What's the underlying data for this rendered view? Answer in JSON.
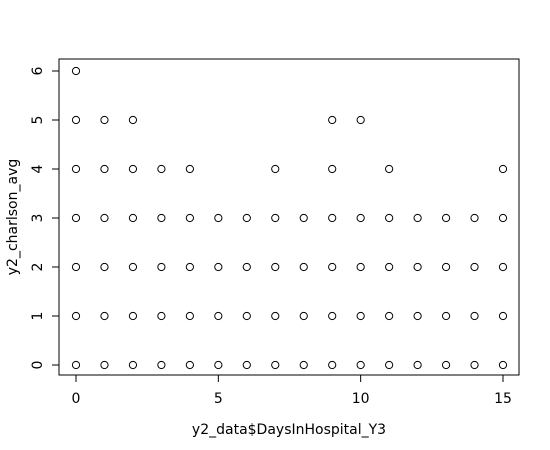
{
  "chart_data": {
    "type": "scatter",
    "title": "",
    "xlabel": "y2_data$DaysInHospital_Y3",
    "ylabel": "y2_charlson_avg",
    "xlim": [
      0,
      15
    ],
    "ylim": [
      0,
      6
    ],
    "x_ticks": [
      0,
      5,
      10,
      15
    ],
    "y_ticks": [
      0,
      1,
      2,
      3,
      4,
      5,
      6
    ],
    "marker": "open-circle",
    "grid": false,
    "points": [
      {
        "x": 0,
        "y": 6,
        "bold": true
      },
      {
        "x": 0,
        "y": 5,
        "bold": true
      },
      {
        "x": 1,
        "y": 5,
        "bold": false
      },
      {
        "x": 2,
        "y": 5,
        "bold": false
      },
      {
        "x": 9,
        "y": 5,
        "bold": false
      },
      {
        "x": 10,
        "y": 5,
        "bold": false
      },
      {
        "x": 0,
        "y": 4,
        "bold": true
      },
      {
        "x": 1,
        "y": 4,
        "bold": true
      },
      {
        "x": 2,
        "y": 4,
        "bold": true
      },
      {
        "x": 3,
        "y": 4,
        "bold": true
      },
      {
        "x": 4,
        "y": 4,
        "bold": false
      },
      {
        "x": 7,
        "y": 4,
        "bold": false
      },
      {
        "x": 9,
        "y": 4,
        "bold": false
      },
      {
        "x": 11,
        "y": 4,
        "bold": false
      },
      {
        "x": 15,
        "y": 4,
        "bold": false
      },
      {
        "x": 0,
        "y": 3,
        "bold": true
      },
      {
        "x": 1,
        "y": 3,
        "bold": true
      },
      {
        "x": 2,
        "y": 3,
        "bold": true
      },
      {
        "x": 3,
        "y": 3,
        "bold": true
      },
      {
        "x": 4,
        "y": 3,
        "bold": true
      },
      {
        "x": 5,
        "y": 3,
        "bold": true
      },
      {
        "x": 6,
        "y": 3,
        "bold": true
      },
      {
        "x": 7,
        "y": 3,
        "bold": true
      },
      {
        "x": 8,
        "y": 3,
        "bold": true
      },
      {
        "x": 9,
        "y": 3,
        "bold": true
      },
      {
        "x": 10,
        "y": 3,
        "bold": true
      },
      {
        "x": 11,
        "y": 3,
        "bold": false
      },
      {
        "x": 12,
        "y": 3,
        "bold": false
      },
      {
        "x": 13,
        "y": 3,
        "bold": false
      },
      {
        "x": 14,
        "y": 3,
        "bold": false
      },
      {
        "x": 15,
        "y": 3,
        "bold": true
      },
      {
        "x": 0,
        "y": 2,
        "bold": true
      },
      {
        "x": 1,
        "y": 2,
        "bold": true
      },
      {
        "x": 2,
        "y": 2,
        "bold": true
      },
      {
        "x": 3,
        "y": 2,
        "bold": true
      },
      {
        "x": 4,
        "y": 2,
        "bold": true
      },
      {
        "x": 5,
        "y": 2,
        "bold": true
      },
      {
        "x": 6,
        "y": 2,
        "bold": true
      },
      {
        "x": 7,
        "y": 2,
        "bold": true
      },
      {
        "x": 8,
        "y": 2,
        "bold": true
      },
      {
        "x": 9,
        "y": 2,
        "bold": true
      },
      {
        "x": 10,
        "y": 2,
        "bold": true
      },
      {
        "x": 11,
        "y": 2,
        "bold": true
      },
      {
        "x": 12,
        "y": 2,
        "bold": true
      },
      {
        "x": 13,
        "y": 2,
        "bold": true
      },
      {
        "x": 14,
        "y": 2,
        "bold": true
      },
      {
        "x": 15,
        "y": 2,
        "bold": true
      },
      {
        "x": 0,
        "y": 1,
        "bold": true
      },
      {
        "x": 1,
        "y": 1,
        "bold": true
      },
      {
        "x": 2,
        "y": 1,
        "bold": true
      },
      {
        "x": 3,
        "y": 1,
        "bold": true
      },
      {
        "x": 4,
        "y": 1,
        "bold": true
      },
      {
        "x": 5,
        "y": 1,
        "bold": true
      },
      {
        "x": 6,
        "y": 1,
        "bold": true
      },
      {
        "x": 7,
        "y": 1,
        "bold": true
      },
      {
        "x": 8,
        "y": 1,
        "bold": true
      },
      {
        "x": 9,
        "y": 1,
        "bold": true
      },
      {
        "x": 10,
        "y": 1,
        "bold": true
      },
      {
        "x": 11,
        "y": 1,
        "bold": true
      },
      {
        "x": 12,
        "y": 1,
        "bold": true
      },
      {
        "x": 13,
        "y": 1,
        "bold": false
      },
      {
        "x": 14,
        "y": 1,
        "bold": false
      },
      {
        "x": 15,
        "y": 1,
        "bold": true
      },
      {
        "x": 0,
        "y": 0,
        "bold": true
      },
      {
        "x": 1,
        "y": 0,
        "bold": true
      },
      {
        "x": 2,
        "y": 0,
        "bold": true
      },
      {
        "x": 3,
        "y": 0,
        "bold": true
      },
      {
        "x": 4,
        "y": 0,
        "bold": true
      },
      {
        "x": 5,
        "y": 0,
        "bold": true
      },
      {
        "x": 6,
        "y": 0,
        "bold": true
      },
      {
        "x": 7,
        "y": 0,
        "bold": true
      },
      {
        "x": 8,
        "y": 0,
        "bold": true
      },
      {
        "x": 9,
        "y": 0,
        "bold": true
      },
      {
        "x": 10,
        "y": 0,
        "bold": true
      },
      {
        "x": 11,
        "y": 0,
        "bold": true
      },
      {
        "x": 12,
        "y": 0,
        "bold": true
      },
      {
        "x": 13,
        "y": 0,
        "bold": true
      },
      {
        "x": 14,
        "y": 0,
        "bold": true
      },
      {
        "x": 15,
        "y": 0,
        "bold": true
      }
    ]
  }
}
